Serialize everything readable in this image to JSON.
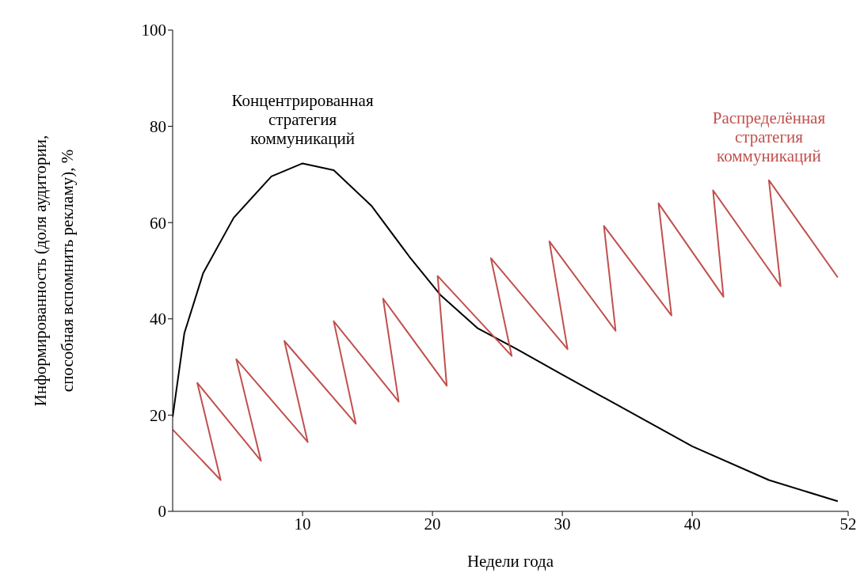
{
  "chart_data": {
    "type": "line",
    "xlabel": "Недели года",
    "ylabel": "Информированность (доля аудитории, способная вспомнить рекламу), %",
    "xlim": [
      0,
      52
    ],
    "xticks": [
      10,
      20,
      30,
      40,
      52
    ],
    "ylim": [
      0,
      100
    ],
    "yticks": [
      0,
      20,
      40,
      60,
      80,
      100
    ],
    "grid": false,
    "legend": false,
    "marker": "none",
    "line_style": "solid",
    "series": [
      {
        "name": "Концентрированная стратегия коммуникаций",
        "color": "#000000",
        "x": [
          0,
          0.9,
          2.35,
          4.7,
          7.6,
          10,
          12.4,
          15.3,
          18.2,
          20.6,
          23.5,
          26.5,
          30,
          34.1,
          40,
          45.9,
          51.2
        ],
        "values": [
          19.6,
          37,
          49.5,
          61,
          69.6,
          72.3,
          70.9,
          63.5,
          53,
          45,
          38,
          33.7,
          28.4,
          22.3,
          13.5,
          6.5,
          2.1
        ]
      },
      {
        "name": "Распределённая стратегия коммуникаций",
        "color": "#c0504d",
        "x": [
          0,
          3.7,
          1.9,
          6.8,
          4.9,
          10.4,
          8.6,
          14.1,
          12.4,
          17.4,
          16.2,
          21.1,
          20.4,
          26.1,
          24.5,
          30.4,
          29,
          34.1,
          33.2,
          38.4,
          37.4,
          42.4,
          41.6,
          46.8,
          45.9,
          51.2
        ],
        "values": [
          17,
          6.5,
          26.7,
          10.5,
          31.6,
          14.4,
          35.4,
          18.2,
          39.5,
          22.8,
          44.2,
          26.1,
          48.9,
          32.3,
          52.6,
          33.7,
          56.1,
          37.5,
          59.3,
          40.7,
          64,
          44.6,
          66.7,
          46.8,
          68.8,
          48.6
        ]
      }
    ]
  }
}
